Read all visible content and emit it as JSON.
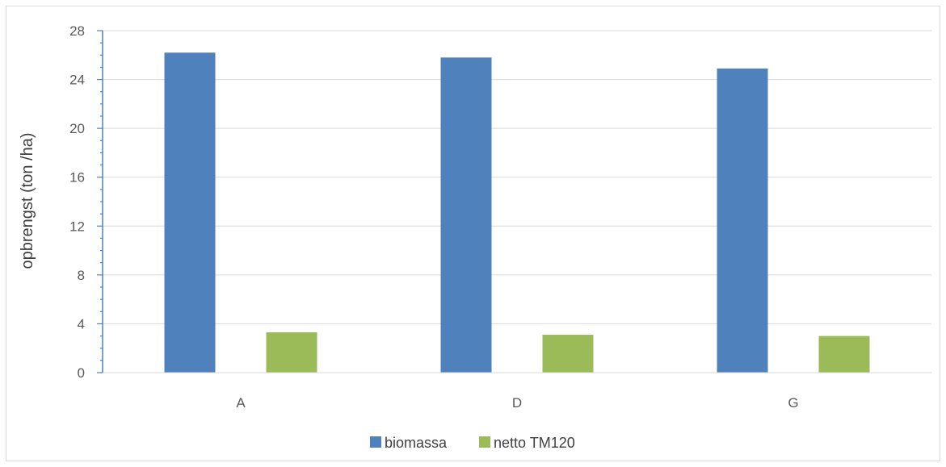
{
  "chart_data": {
    "type": "bar",
    "categories": [
      "A",
      "D",
      "G"
    ],
    "series": [
      {
        "name": "biomassa",
        "values": [
          26.2,
          25.8,
          24.9
        ],
        "color": "#4f81bd"
      },
      {
        "name": "netto TM120",
        "values": [
          3.3,
          3.1,
          3.0
        ],
        "color": "#9bbb59"
      }
    ],
    "title": "",
    "xlabel": "",
    "ylabel": "opbrengst (ton /ha)",
    "ylim": [
      0,
      28
    ],
    "yticks": [
      0,
      4,
      8,
      12,
      16,
      20,
      24,
      28
    ],
    "grid": true,
    "legend_position": "bottom"
  }
}
